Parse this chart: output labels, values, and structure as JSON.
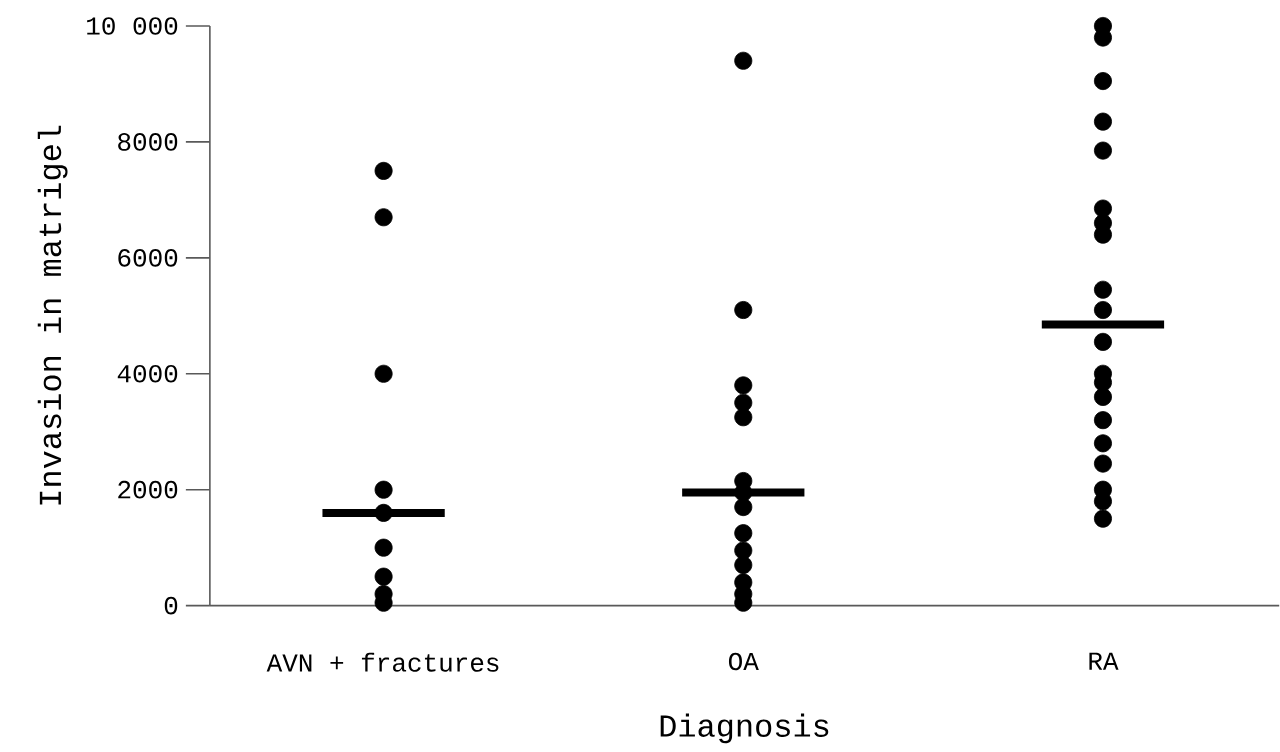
{
  "chart_data": {
    "type": "scatter",
    "xlabel": "Diagnosis",
    "ylabel": "Invasion in matrigel",
    "categories": [
      "AVN + fractures",
      "OA",
      "RA"
    ],
    "ylim": [
      0,
      10000
    ],
    "yticks": [
      0,
      2000,
      4000,
      6000,
      8000,
      {
        "value": 10000,
        "label": "10 000"
      }
    ],
    "grid": false,
    "series": [
      {
        "color": "#000000",
        "marker": "circle",
        "x": [
          "AVN + fractures",
          "AVN + fractures",
          "AVN + fractures",
          "AVN + fractures",
          "AVN + fractures",
          "AVN + fractures",
          "AVN + fractures",
          "AVN + fractures",
          "AVN + fractures",
          "OA",
          "OA",
          "OA",
          "OA",
          "OA",
          "OA",
          "OA",
          "OA",
          "OA",
          "OA",
          "OA",
          "OA",
          "OA",
          "OA",
          "RA",
          "RA",
          "RA",
          "RA",
          "RA",
          "RA",
          "RA",
          "RA",
          "RA",
          "RA",
          "RA",
          "RA",
          "RA",
          "RA",
          "RA",
          "RA",
          "RA",
          "RA",
          "RA",
          "RA"
        ],
        "values": [
          7500,
          6700,
          4000,
          2000,
          1600,
          1000,
          500,
          200,
          50,
          9400,
          5100,
          3800,
          3500,
          3250,
          2150,
          1950,
          1700,
          1250,
          950,
          700,
          400,
          200,
          50,
          10000,
          9800,
          9050,
          8350,
          7850,
          6850,
          6600,
          6400,
          5450,
          5100,
          4550,
          4000,
          3850,
          3600,
          3200,
          2800,
          2450,
          2000,
          1800,
          1500
        ]
      },
      {
        "type": "box",
        "color": "#000000",
        "boxes": [
          {
            "low": 1600,
            "q1": 1600,
            "median": 1600,
            "q3": 1600,
            "high": 1600
          },
          {
            "low": 1950,
            "q1": 1950,
            "median": 1950,
            "q3": 1950,
            "high": 1950
          },
          {
            "low": 4850,
            "q1": 4850,
            "median": 4850,
            "q3": 4850,
            "high": 4850
          }
        ]
      }
    ]
  }
}
